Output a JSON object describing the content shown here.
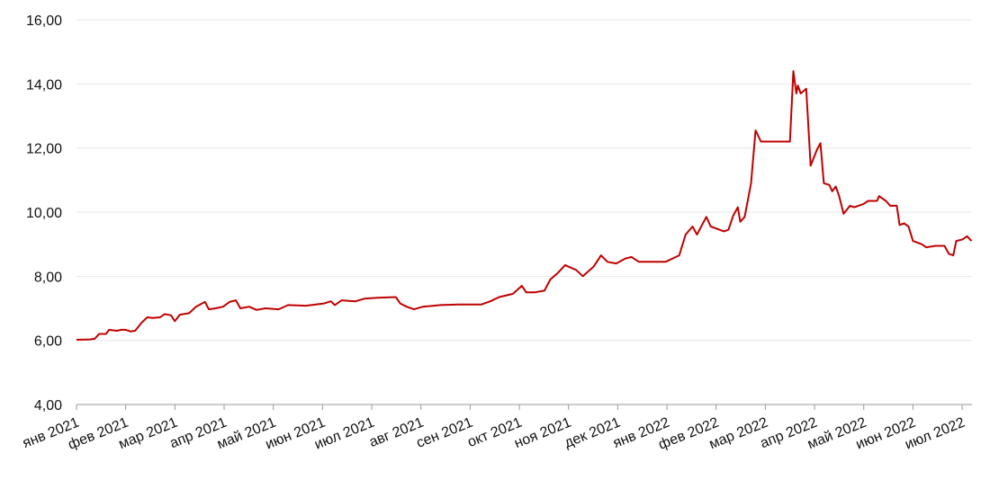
{
  "chart_data": {
    "type": "line",
    "x": [
      0,
      0.27,
      0.37,
      0.46,
      0.6,
      0.66,
      0.82,
      0.91,
      1.0,
      1.1,
      1.19,
      1.32,
      1.44,
      1.55,
      1.7,
      1.79,
      1.92,
      2.0,
      2.1,
      2.29,
      2.43,
      2.61,
      2.69,
      2.83,
      2.98,
      3.11,
      3.24,
      3.33,
      3.51,
      3.66,
      3.84,
      4.11,
      4.3,
      4.66,
      5.03,
      5.17,
      5.25,
      5.39,
      5.67,
      5.85,
      6.12,
      6.49,
      6.58,
      6.71,
      6.86,
      7.04,
      7.4,
      7.77,
      8.23,
      8.41,
      8.59,
      8.87,
      9.05,
      9.14,
      9.32,
      9.51,
      9.63,
      9.78,
      9.93,
      10.15,
      10.29,
      10.51,
      10.66,
      10.79,
      10.97,
      11.15,
      11.28,
      11.43,
      11.7,
      11.97,
      12.25,
      12.38,
      12.52,
      12.61,
      12.8,
      12.89,
      13.16,
      13.25,
      13.35,
      13.44,
      13.49,
      13.58,
      13.71,
      13.8,
      13.91,
      14.5,
      14.57,
      14.63,
      14.66,
      14.72,
      14.83,
      14.92,
      15.05,
      15.12,
      15.19,
      15.3,
      15.36,
      15.43,
      15.5,
      15.59,
      15.72,
      15.81,
      15.99,
      16.09,
      16.27,
      16.31,
      16.45,
      16.54,
      16.67,
      16.73,
      16.82,
      16.91,
      17.0,
      17.18,
      17.27,
      17.46,
      17.64,
      17.73,
      17.82,
      17.88,
      18.01,
      18.1,
      18.19
    ],
    "series": [
      {
        "color": "#c00000",
        "values": [
          6.02,
          6.03,
          6.05,
          6.2,
          6.2,
          6.33,
          6.3,
          6.33,
          6.33,
          6.28,
          6.3,
          6.55,
          6.72,
          6.7,
          6.72,
          6.82,
          6.78,
          6.6,
          6.8,
          6.85,
          7.05,
          7.2,
          6.97,
          7.0,
          7.05,
          7.2,
          7.25,
          7.0,
          7.05,
          6.95,
          7.0,
          6.97,
          7.1,
          7.08,
          7.15,
          7.22,
          7.1,
          7.25,
          7.22,
          7.3,
          7.33,
          7.35,
          7.15,
          7.05,
          6.97,
          7.05,
          7.1,
          7.12,
          7.12,
          7.22,
          7.35,
          7.45,
          7.7,
          7.5,
          7.5,
          7.55,
          7.9,
          8.1,
          8.35,
          8.2,
          8.0,
          8.3,
          8.65,
          8.45,
          8.4,
          8.55,
          8.6,
          8.45,
          8.45,
          8.45,
          8.65,
          9.3,
          9.55,
          9.3,
          9.85,
          9.55,
          9.4,
          9.45,
          9.9,
          10.15,
          9.7,
          9.85,
          10.9,
          12.55,
          12.2,
          12.2,
          14.4,
          13.7,
          13.95,
          13.7,
          13.85,
          11.45,
          11.95,
          12.15,
          10.9,
          10.85,
          10.65,
          10.8,
          10.5,
          9.95,
          10.2,
          10.15,
          10.25,
          10.35,
          10.35,
          10.5,
          10.35,
          10.2,
          10.2,
          9.6,
          9.65,
          9.55,
          9.1,
          9.0,
          8.9,
          8.95,
          8.95,
          8.7,
          8.65,
          9.1,
          9.15,
          9.25,
          9.1
        ]
      }
    ],
    "xlim": [
      0,
      18.2
    ],
    "xticks": [
      {
        "value": 0,
        "label": "янв 2021"
      },
      {
        "value": 1,
        "label": "фев 2021"
      },
      {
        "value": 2,
        "label": "мар 2021"
      },
      {
        "value": 3,
        "label": "апр 2021"
      },
      {
        "value": 4,
        "label": "май 2021"
      },
      {
        "value": 5,
        "label": "июн 2021"
      },
      {
        "value": 6,
        "label": "июл 2021"
      },
      {
        "value": 7,
        "label": "авг 2021"
      },
      {
        "value": 8,
        "label": "сен 2021"
      },
      {
        "value": 9,
        "label": "окт 2021"
      },
      {
        "value": 10,
        "label": "ноя 2021"
      },
      {
        "value": 11,
        "label": "дек 2021"
      },
      {
        "value": 12,
        "label": "янв 2022"
      },
      {
        "value": 13,
        "label": "фев 2022"
      },
      {
        "value": 14,
        "label": "мар 2022"
      },
      {
        "value": 15,
        "label": "апр 2022"
      },
      {
        "value": 16,
        "label": "май 2022"
      },
      {
        "value": 17,
        "label": "июн 2022"
      },
      {
        "value": 18,
        "label": "июл 2022"
      }
    ],
    "ylim": [
      4,
      16
    ],
    "yticks": [
      {
        "value": 4,
        "label": "4,00"
      },
      {
        "value": 6,
        "label": "6,00"
      },
      {
        "value": 8,
        "label": "8,00"
      },
      {
        "value": 10,
        "label": "10,00"
      },
      {
        "value": 12,
        "label": "12,00"
      },
      {
        "value": 14,
        "label": "14,00"
      },
      {
        "value": 16,
        "label": "16,00"
      }
    ],
    "grid": true
  }
}
